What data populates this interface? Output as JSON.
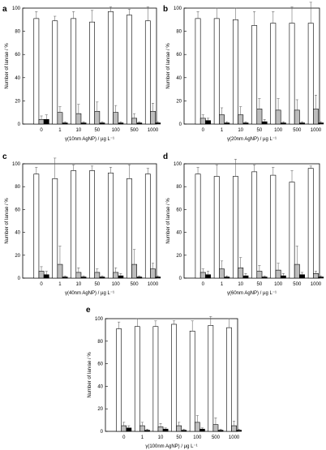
{
  "chart_data": [
    {
      "panel_label": "a",
      "type": "bar",
      "categories": [
        "0",
        "1",
        "10",
        "50",
        "100",
        "500",
        "1000"
      ],
      "xlabel": "γ(10nm AgNP) / µg L⁻¹",
      "ylabel": "Number of larvae / %",
      "ylim": [
        0,
        100
      ],
      "yticks": [
        "0",
        "20",
        "40",
        "60",
        "80",
        "100"
      ],
      "series": [
        {
          "color": "#ffffff",
          "values": [
            91,
            89,
            91,
            88,
            97,
            94,
            89
          ],
          "errors": [
            6,
            4,
            6,
            10,
            4,
            5,
            12
          ]
        },
        {
          "color": "#bdbdbd",
          "values": [
            4,
            10,
            9,
            11,
            10,
            5,
            11
          ],
          "errors": [
            3,
            5,
            8,
            8,
            6,
            4,
            7
          ]
        },
        {
          "color": "#000000",
          "values": [
            4,
            1,
            1,
            1,
            1,
            1,
            1
          ],
          "errors": [
            4,
            1,
            1,
            1,
            1,
            1,
            1
          ]
        }
      ]
    },
    {
      "panel_label": "b",
      "type": "bar",
      "categories": [
        "0",
        "1",
        "10",
        "50",
        "100",
        "500",
        "1000"
      ],
      "xlabel": "γ(20nm AgNP) / µg L⁻¹",
      "ylabel": "Number of larvae / %",
      "ylim": [
        0,
        100
      ],
      "yticks": [
        "0",
        "20",
        "40",
        "60",
        "80",
        "100"
      ],
      "series": [
        {
          "color": "#ffffff",
          "values": [
            91,
            91,
            90,
            85,
            87,
            87,
            87
          ],
          "errors": [
            6,
            9,
            10,
            12,
            10,
            14,
            18
          ]
        },
        {
          "color": "#bdbdbd",
          "values": [
            5,
            8,
            8,
            13,
            12,
            12,
            13
          ],
          "errors": [
            3,
            6,
            7,
            9,
            10,
            9,
            12
          ]
        },
        {
          "color": "#000000",
          "values": [
            3,
            1,
            1,
            2,
            1,
            1,
            1
          ],
          "errors": [
            2,
            1,
            1,
            2,
            1,
            1,
            1
          ]
        }
      ]
    },
    {
      "panel_label": "c",
      "type": "bar",
      "categories": [
        "0",
        "1",
        "10",
        "50",
        "100",
        "500",
        "1000"
      ],
      "xlabel": "γ(40nm AgNP) / µg L⁻¹",
      "ylabel": "Number of larvae / %",
      "ylim": [
        0,
        100
      ],
      "yticks": [
        "0",
        "20",
        "40",
        "60",
        "80",
        "100"
      ],
      "series": [
        {
          "color": "#ffffff",
          "values": [
            91,
            87,
            94,
            94,
            92,
            87,
            91
          ],
          "errors": [
            6,
            18,
            5,
            4,
            5,
            12,
            5
          ]
        },
        {
          "color": "#bdbdbd",
          "values": [
            6,
            12,
            5,
            5,
            5,
            12,
            8
          ],
          "errors": [
            4,
            16,
            4,
            3,
            4,
            13,
            5
          ]
        },
        {
          "color": "#000000",
          "values": [
            3,
            1,
            1,
            1,
            2,
            1,
            1
          ],
          "errors": [
            3,
            1,
            1,
            1,
            2,
            1,
            1
          ]
        }
      ]
    },
    {
      "panel_label": "d",
      "type": "bar",
      "categories": [
        "0",
        "1",
        "10",
        "50",
        "100",
        "500",
        "1000"
      ],
      "xlabel": "γ(60nm AgNP) / µg L⁻¹",
      "ylabel": "Number of larvae / %",
      "ylim": [
        0,
        100
      ],
      "yticks": [
        "0",
        "20",
        "40",
        "60",
        "80",
        "100"
      ],
      "series": [
        {
          "color": "#ffffff",
          "values": [
            91,
            89,
            89,
            93,
            90,
            84,
            96
          ],
          "errors": [
            6,
            10,
            15,
            6,
            7,
            10,
            2
          ]
        },
        {
          "color": "#bdbdbd",
          "values": [
            5,
            8,
            9,
            6,
            7,
            12,
            4
          ],
          "errors": [
            3,
            7,
            9,
            5,
            6,
            16,
            2
          ]
        },
        {
          "color": "#000000",
          "values": [
            3,
            1,
            2,
            1,
            2,
            3,
            1
          ],
          "errors": [
            3,
            1,
            2,
            1,
            2,
            2,
            1
          ]
        }
      ]
    },
    {
      "panel_label": "e",
      "type": "bar",
      "categories": [
        "0",
        "1",
        "10",
        "50",
        "100",
        "500",
        "1000"
      ],
      "xlabel": "γ(100nm AgNP) / µg L⁻¹",
      "ylabel": "Number of larvae / %",
      "ylim": [
        0,
        100
      ],
      "yticks": [
        "0",
        "20",
        "40",
        "60",
        "80",
        "100"
      ],
      "series": [
        {
          "color": "#ffffff",
          "values": [
            91,
            93,
            93,
            95,
            89,
            94,
            92
          ],
          "errors": [
            6,
            7,
            5,
            3,
            9,
            8,
            8
          ]
        },
        {
          "color": "#bdbdbd",
          "values": [
            5,
            5,
            4,
            5,
            8,
            6,
            5
          ],
          "errors": [
            3,
            3,
            3,
            3,
            6,
            6,
            4
          ]
        },
        {
          "color": "#000000",
          "values": [
            3,
            1,
            2,
            1,
            2,
            1,
            1
          ],
          "errors": [
            2,
            1,
            1,
            1,
            1,
            1,
            1
          ]
        }
      ]
    }
  ]
}
